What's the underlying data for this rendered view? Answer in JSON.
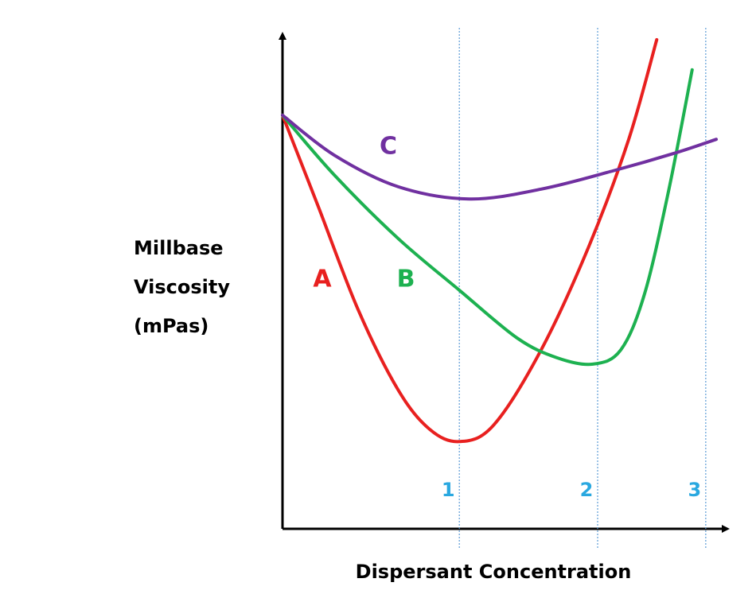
{
  "chart_data": {
    "type": "line",
    "x_label": "Dispersant Concentration",
    "y_label": [
      "Millbase",
      "Viscosity",
      "(mPas)"
    ],
    "xlim": [
      0,
      100
    ],
    "ylim": [
      0,
      100
    ],
    "series": [
      {
        "name": "A",
        "color": "#e8201f",
        "x": [
          0,
          8.2,
          17.3,
          26.4,
          33.6,
          40.4,
          48.2,
          59.1,
          70,
          79.1,
          85.5
        ],
        "values": [
          83.9,
          65.3,
          44.4,
          28.2,
          20.2,
          17.7,
          21,
          36.3,
          57.3,
          79,
          99.2
        ]
      },
      {
        "name": "B",
        "color": "#1db150",
        "x": [
          0,
          11.8,
          26.4,
          40.4,
          53.6,
          62.7,
          70.9,
          77.3,
          82.7,
          88.2,
          93.6
        ],
        "values": [
          83.9,
          71.8,
          58.9,
          48.4,
          38.7,
          34.7,
          33.4,
          36.3,
          47.6,
          68.5,
          93.1
        ]
      },
      {
        "name": "C",
        "color": "#7030a0",
        "x": [
          0,
          11.8,
          26.4,
          42.7,
          59.1,
          75.5,
          90,
          99.1
        ],
        "values": [
          83.9,
          75.8,
          69.4,
          66.9,
          68.9,
          72.6,
          76.3,
          79
        ]
      }
    ],
    "reference_lines": [
      {
        "label": "1",
        "x": 40.4,
        "color": "#5b9bd5",
        "label_color": "#29a8e0"
      },
      {
        "label": "2",
        "x": 72,
        "color": "#5b9bd5",
        "label_color": "#29a8e0"
      },
      {
        "label": "3",
        "x": 96.7,
        "color": "#5b9bd5",
        "label_color": "#29a8e0"
      }
    ]
  }
}
